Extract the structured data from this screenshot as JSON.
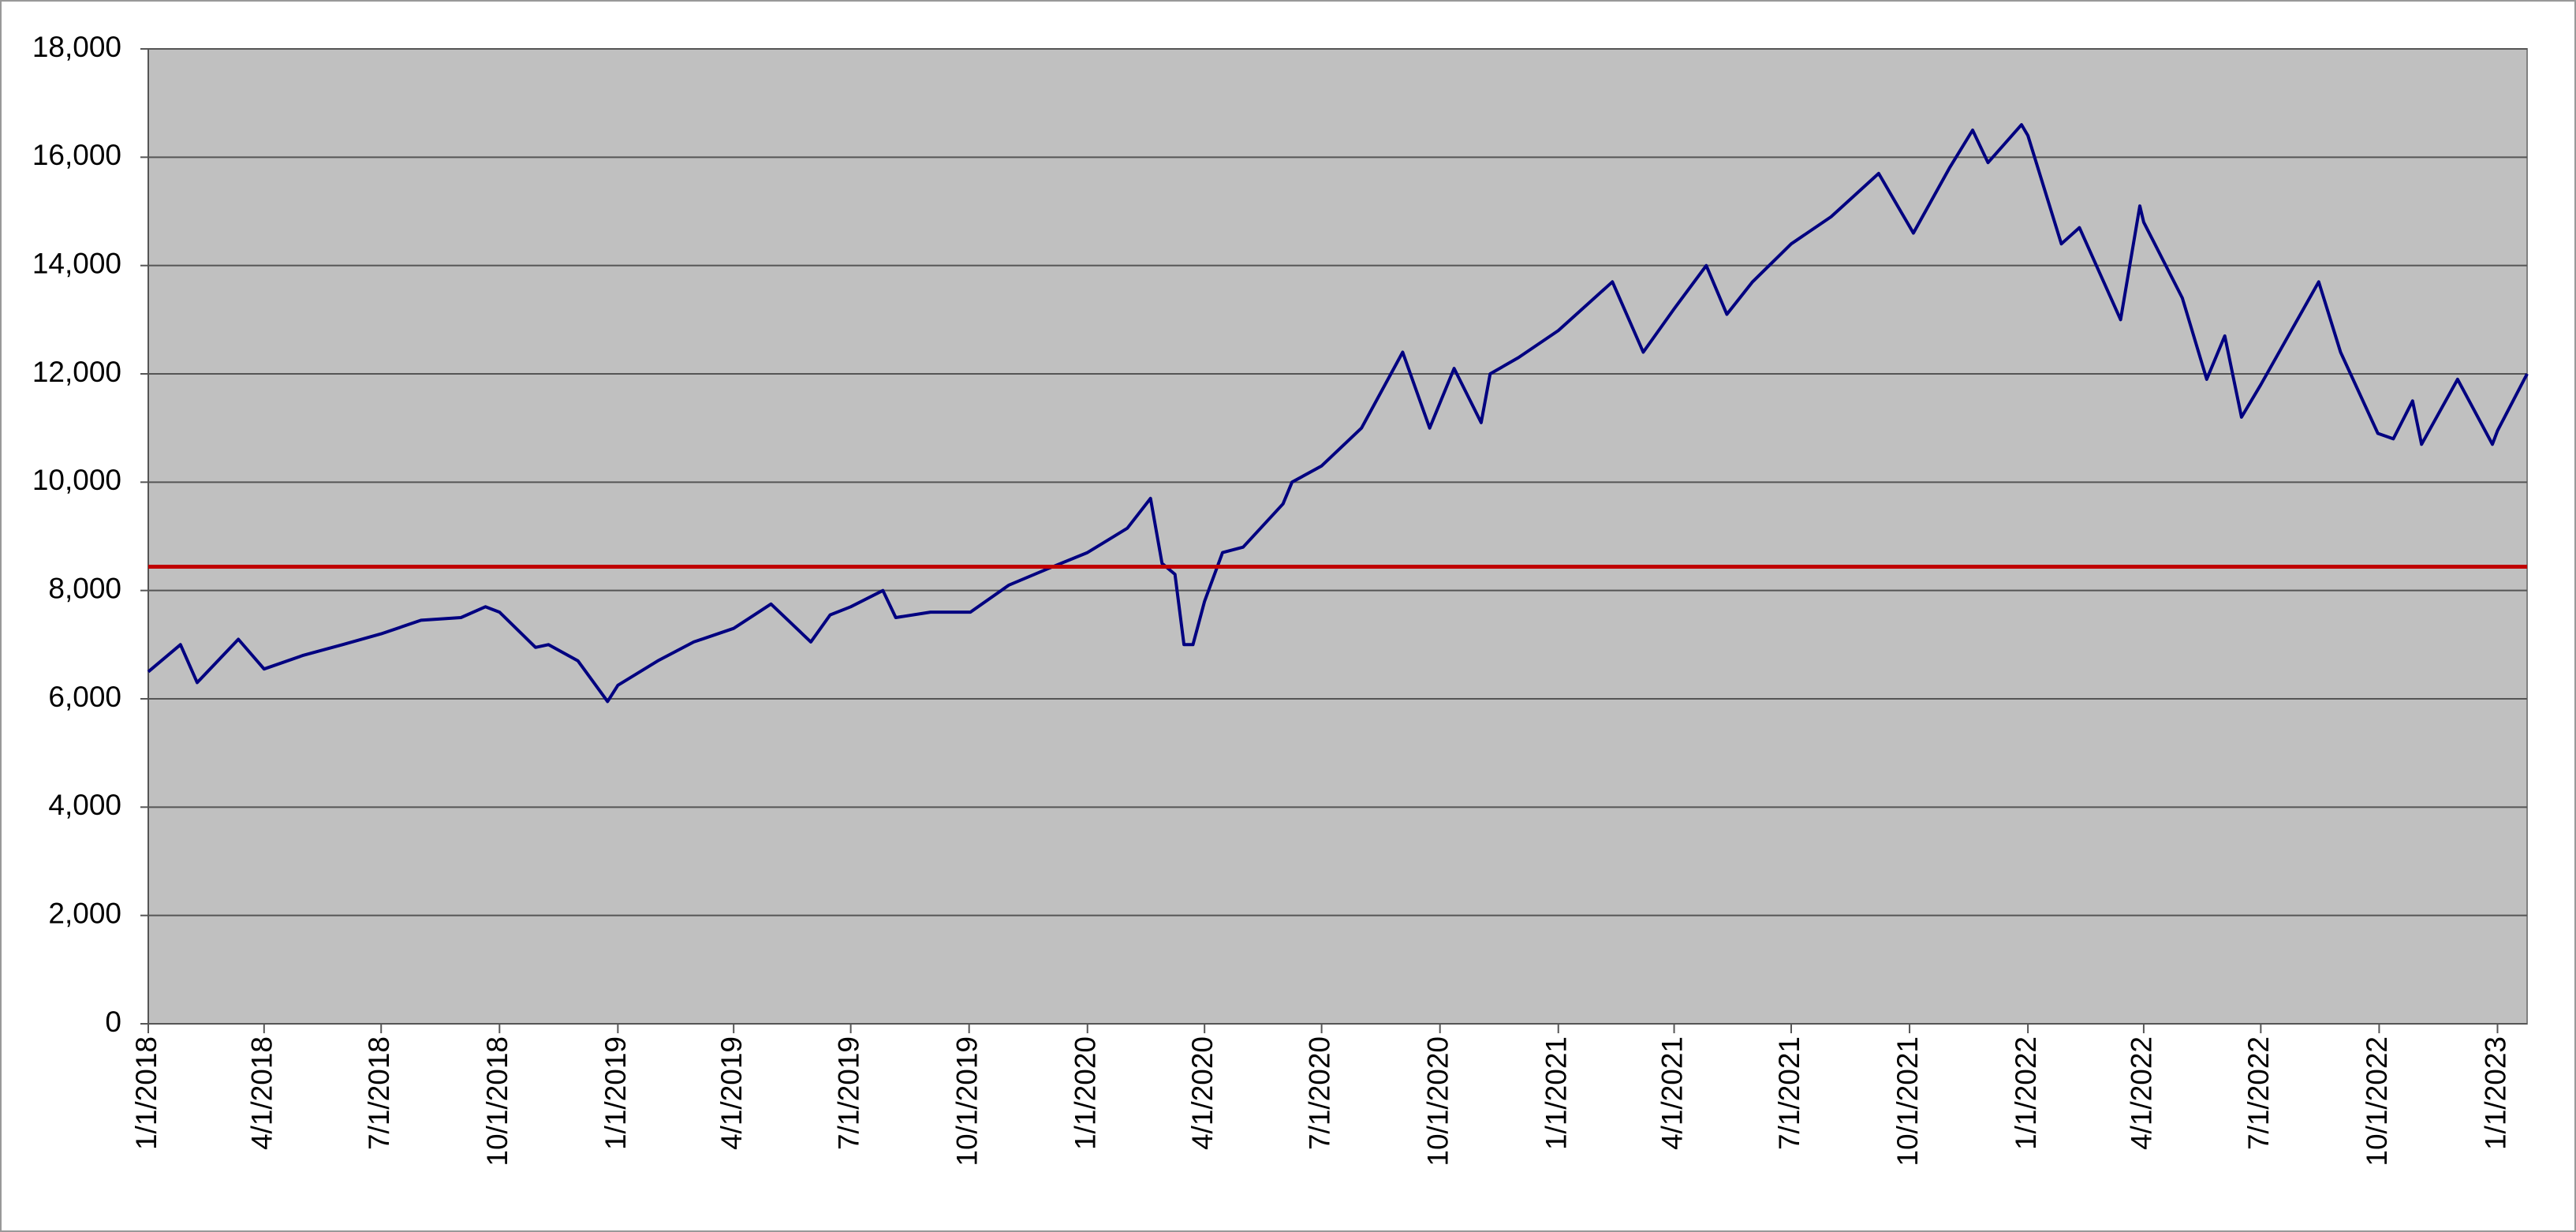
{
  "chart_data": {
    "type": "line",
    "x": [
      "1/1/2018",
      "1/26/2018",
      "2/8/2018",
      "3/12/2018",
      "4/1/2018",
      "5/1/2018",
      "6/1/2018",
      "7/1/2018",
      "8/1/2018",
      "9/1/2018",
      "9/20/2018",
      "10/1/2018",
      "10/29/2018",
      "11/8/2018",
      "12/1/2018",
      "12/24/2018",
      "1/1/2019",
      "2/1/2019",
      "3/1/2019",
      "4/1/2019",
      "4/30/2019",
      "5/31/2019",
      "6/15/2019",
      "7/1/2019",
      "7/26/2019",
      "8/5/2019",
      "9/1/2019",
      "10/2/2019",
      "11/1/2019",
      "12/1/2019",
      "1/1/2020",
      "2/1/2020",
      "2/19/2020",
      "2/28/2020",
      "3/9/2020",
      "3/16/2020",
      "3/23/2020",
      "4/1/2020",
      "4/15/2020",
      "5/1/2020",
      "6/1/2020",
      "6/8/2020",
      "7/1/2020",
      "8/1/2020",
      "9/2/2020",
      "9/23/2020",
      "10/12/2020",
      "11/2/2020",
      "11/9/2020",
      "12/1/2020",
      "1/1/2021",
      "2/12/2021",
      "3/8/2021",
      "4/1/2021",
      "4/26/2021",
      "5/12/2021",
      "6/1/2021",
      "7/1/2021",
      "8/1/2021",
      "9/7/2021",
      "10/4/2021",
      "11/1/2021",
      "11/19/2021",
      "12/1/2021",
      "12/27/2021",
      "1/1/2022",
      "1/27/2022",
      "2/10/2022",
      "3/14/2022",
      "3/29/2022",
      "4/1/2022",
      "5/1/2022",
      "5/20/2022",
      "6/3/2022",
      "6/16/2022",
      "7/1/2022",
      "8/15/2022",
      "9/1/2022",
      "9/30/2022",
      "10/12/2022",
      "10/27/2022",
      "11/3/2022",
      "12/1/2022",
      "12/28/2022",
      "1/1/2023",
      "1/24/2023"
    ],
    "series": [
      {
        "color": "#000080",
        "values": [
          6500,
          7000,
          6300,
          7100,
          6550,
          6800,
          7000,
          7200,
          7450,
          7500,
          7700,
          7600,
          6950,
          7000,
          6700,
          5950,
          6250,
          6700,
          7050,
          7300,
          7750,
          7050,
          7550,
          7700,
          8000,
          7500,
          7600,
          7600,
          8100,
          8400,
          8700,
          9150,
          9700,
          8500,
          8300,
          7000,
          7000,
          7800,
          8700,
          8800,
          9600,
          10000,
          10300,
          11000,
          12400,
          11000,
          12100,
          11100,
          12000,
          12300,
          12800,
          13700,
          12400,
          13200,
          14000,
          13100,
          13700,
          14400,
          14900,
          15700,
          14600,
          15800,
          16500,
          15900,
          16600,
          16400,
          14400,
          14700,
          13000,
          15100,
          14800,
          13400,
          11900,
          12700,
          11200,
          11800,
          13700,
          12400,
          10900,
          10800,
          11500,
          10700,
          11900,
          10700,
          10950,
          12000
        ]
      }
    ],
    "reference_line": {
      "value": 8440,
      "color": "#c00000"
    },
    "xlim": [
      "1/1/2018",
      "1/24/2023"
    ],
    "xticks": [
      "1/1/2018",
      "4/1/2018",
      "7/1/2018",
      "10/1/2018",
      "1/1/2019",
      "4/1/2019",
      "7/1/2019",
      "10/1/2019",
      "1/1/2020",
      "4/1/2020",
      "7/1/2020",
      "10/1/2020",
      "1/1/2021",
      "4/1/2021",
      "7/1/2021",
      "10/1/2021",
      "1/1/2022",
      "4/1/2022",
      "7/1/2022",
      "10/1/2022",
      "1/1/2023"
    ],
    "ylim": [
      0,
      18000
    ],
    "yticks": [
      0,
      {
        "value": 2000,
        "label": "2,000"
      },
      {
        "value": 4000,
        "label": "4,000"
      },
      {
        "value": 6000,
        "label": "6,000"
      },
      {
        "value": 8000,
        "label": "8,000"
      },
      {
        "value": 10000,
        "label": "10,000"
      },
      {
        "value": 12000,
        "label": "12,000"
      },
      {
        "value": 14000,
        "label": "14,000"
      },
      {
        "value": 16000,
        "label": "16,000"
      },
      {
        "value": 18000,
        "label": "18,000"
      }
    ],
    "grid": true
  }
}
